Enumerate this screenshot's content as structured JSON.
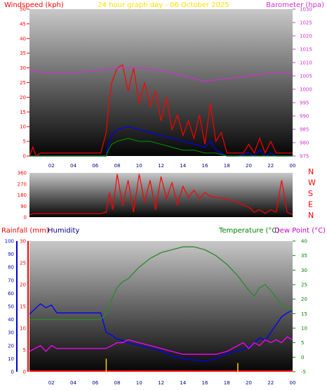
{
  "chart_data": [
    {
      "type": "line",
      "title": "24 hour graph day - 06 October 2025",
      "ylabel": "Windspeed (kph)",
      "y2label": "Barometer (hpa)",
      "xticks": [
        "02",
        "04",
        "06",
        "08",
        "10",
        "12",
        "14",
        "16",
        "18",
        "20",
        "22",
        "00"
      ],
      "xlim": [
        0,
        24
      ],
      "ylim": [
        0,
        50
      ],
      "yticks": [
        "0",
        "5",
        "10",
        "15",
        "20",
        "25",
        "30",
        "35",
        "40",
        "45",
        "50"
      ],
      "y2lim": [
        975,
        1030
      ],
      "y2ticks": [
        "975",
        "980",
        "985",
        "990",
        "995",
        "1000",
        "1005",
        "1010",
        "1015",
        "1020",
        "1025",
        "1030"
      ],
      "series": [
        {
          "color": "#ff0000",
          "x": [
            0,
            0.3,
            0.6,
            1,
            3,
            6.5,
            7,
            7.2,
            7.5,
            8,
            8.5,
            9,
            9.5,
            10,
            10.5,
            11,
            11.5,
            12,
            12.5,
            13,
            13.5,
            14,
            14.5,
            15,
            15.5,
            16,
            16.5,
            17,
            17.5,
            18,
            19,
            19.5,
            20,
            20.5,
            21,
            21.5,
            22,
            22.5,
            24
          ],
          "values": [
            0,
            3,
            0,
            1,
            1,
            1,
            8,
            16,
            25,
            30,
            31,
            22,
            30,
            18,
            25,
            17,
            22,
            12,
            20,
            9,
            14,
            7,
            12,
            6,
            14,
            4,
            18,
            5,
            8,
            1,
            1,
            1,
            4,
            1,
            6,
            1,
            5,
            1,
            1
          ]
        },
        {
          "color": "#0000ff",
          "x": [
            0,
            7,
            7.2,
            7.5,
            8,
            9,
            10,
            11,
            12,
            13,
            14,
            15,
            16,
            16.5,
            17,
            17.5,
            18,
            19,
            20,
            20.5,
            21,
            21.5,
            22,
            22.5,
            24
          ],
          "values": [
            0,
            0,
            4,
            7,
            9,
            10,
            9,
            8,
            7,
            6,
            5,
            4,
            3,
            5,
            2,
            1,
            0,
            0,
            1,
            0,
            2,
            0,
            1,
            0,
            0
          ]
        },
        {
          "color": "#008000",
          "x": [
            0,
            7,
            7.2,
            7.5,
            8,
            9,
            10,
            11,
            12,
            13,
            14,
            15,
            16,
            17,
            18,
            24
          ],
          "values": [
            0,
            0,
            2,
            4,
            5,
            6,
            5,
            5,
            4,
            3,
            2,
            2,
            1,
            1,
            0,
            0
          ]
        },
        {
          "axis": "y2",
          "color": "#cc33cc",
          "x": [
            0,
            2,
            4,
            6,
            8,
            9,
            10,
            12,
            14,
            16,
            18,
            20,
            22,
            24
          ],
          "values": [
            1007,
            1006,
            1006,
            1007,
            1008,
            1008,
            1008,
            1007,
            1005,
            1003,
            1004,
            1005,
            1006,
            1006
          ]
        }
      ]
    },
    {
      "type": "scatter",
      "title": "",
      "xticks": [
        "02",
        "04",
        "06",
        "08",
        "10",
        "12",
        "14",
        "16",
        "18",
        "20",
        "22",
        "00"
      ],
      "xlim": [
        0,
        24
      ],
      "ylim": [
        0,
        360
      ],
      "yticks": [
        "0",
        "90",
        "180",
        "270",
        "360"
      ],
      "compass": [
        "N",
        "W",
        "S",
        "E",
        "N"
      ],
      "series": [
        {
          "color": "#ff0000",
          "x": [
            0,
            0.4,
            3,
            6.5,
            7,
            7.3,
            7.6,
            8,
            8.5,
            9,
            9.5,
            10,
            10.5,
            11,
            11.5,
            12,
            12.5,
            13,
            13.5,
            14,
            14.5,
            15,
            15.5,
            16,
            16.5,
            17,
            18,
            19,
            20,
            20.5,
            21,
            21.5,
            22,
            22.5,
            23,
            23.5,
            24
          ],
          "values": [
            20,
            30,
            30,
            30,
            40,
            200,
            60,
            350,
            90,
            300,
            40,
            350,
            120,
            300,
            60,
            330,
            150,
            280,
            100,
            250,
            160,
            220,
            150,
            200,
            170,
            160,
            150,
            120,
            80,
            40,
            60,
            30,
            60,
            40,
            300,
            40,
            20
          ]
        }
      ]
    },
    {
      "type": "line",
      "title": "",
      "y2label": "Rainfall (mm)",
      "ylabel": "Humidity",
      "y3label": "Temperature (°C)",
      "y4label": "Dew Point (°C)",
      "xticks": [
        "02",
        "04",
        "06",
        "08",
        "10",
        "12",
        "14",
        "16",
        "18",
        "20",
        "22",
        "00"
      ],
      "xlim": [
        0,
        24
      ],
      "humidity_ticks": [
        "0",
        "10",
        "20",
        "30",
        "40",
        "50",
        "60",
        "70",
        "80",
        "90",
        "100"
      ],
      "humidity_lim": [
        0,
        100
      ],
      "rain_ticks": [
        "0",
        "5",
        "10",
        "15",
        "20",
        "25",
        "30"
      ],
      "rain_lim": [
        0,
        30
      ],
      "temp_ticks": [
        "-5",
        "0",
        "5",
        "10",
        "15",
        "20",
        "25",
        "30",
        "35",
        "40"
      ],
      "temp_lim": [
        -5,
        40
      ],
      "series": [
        {
          "axis": "humidity",
          "color": "#0000ff",
          "x": [
            0,
            0.5,
            1,
            1.5,
            2,
            2.5,
            3,
            4,
            5,
            6,
            6.5,
            7,
            7.5,
            8,
            8.5,
            9,
            10,
            11,
            12,
            13,
            14,
            15,
            16,
            16.5,
            17,
            17.5,
            18,
            19,
            20,
            20.5,
            21,
            21.5,
            22,
            22.5,
            23,
            23.5,
            24
          ],
          "values": [
            44,
            48,
            52,
            49,
            51,
            45,
            45,
            45,
            45,
            45,
            45,
            30,
            28,
            25,
            24,
            22,
            20,
            18,
            16,
            12,
            10,
            9,
            8,
            9,
            10,
            12,
            14,
            16,
            19,
            22,
            26,
            24,
            30,
            36,
            42,
            45,
            47
          ]
        },
        {
          "axis": "temp",
          "color": "#2a8a2a",
          "x": [
            0,
            2,
            6.5,
            7,
            7.5,
            8,
            8.5,
            9,
            9.5,
            10,
            11,
            12,
            13,
            14,
            15,
            16,
            17,
            18,
            19,
            20,
            20.5,
            21,
            21.5,
            22,
            23,
            24
          ],
          "values": [
            13,
            13,
            13,
            15,
            20,
            24,
            26,
            27,
            29,
            31,
            34,
            36,
            37,
            38,
            38,
            37,
            35,
            32,
            28,
            23,
            21,
            24,
            25,
            23,
            18,
            16
          ]
        },
        {
          "axis": "temp",
          "color": "#ff00ff",
          "x": [
            0,
            0.5,
            1,
            1.5,
            2,
            2.5,
            3,
            4,
            5,
            6,
            6.5,
            7,
            7.5,
            8,
            8.5,
            9,
            10,
            11,
            12,
            13,
            14,
            15,
            16,
            17,
            18,
            18.5,
            19,
            19.5,
            20,
            20.5,
            21,
            21.5,
            22,
            22.5,
            23,
            23.5,
            24
          ],
          "values": [
            2,
            3,
            4,
            2,
            4,
            3,
            3,
            3,
            3,
            3,
            3,
            3,
            4,
            5,
            5,
            6,
            5,
            4,
            3,
            2,
            1,
            1,
            1,
            1,
            2,
            3,
            4,
            5,
            3,
            5,
            4,
            6,
            5,
            6,
            5,
            7,
            6
          ]
        },
        {
          "axis": "rain",
          "color": "#ffcc00",
          "x": [
            7,
            19
          ],
          "values": [
            3,
            2
          ]
        }
      ]
    }
  ]
}
